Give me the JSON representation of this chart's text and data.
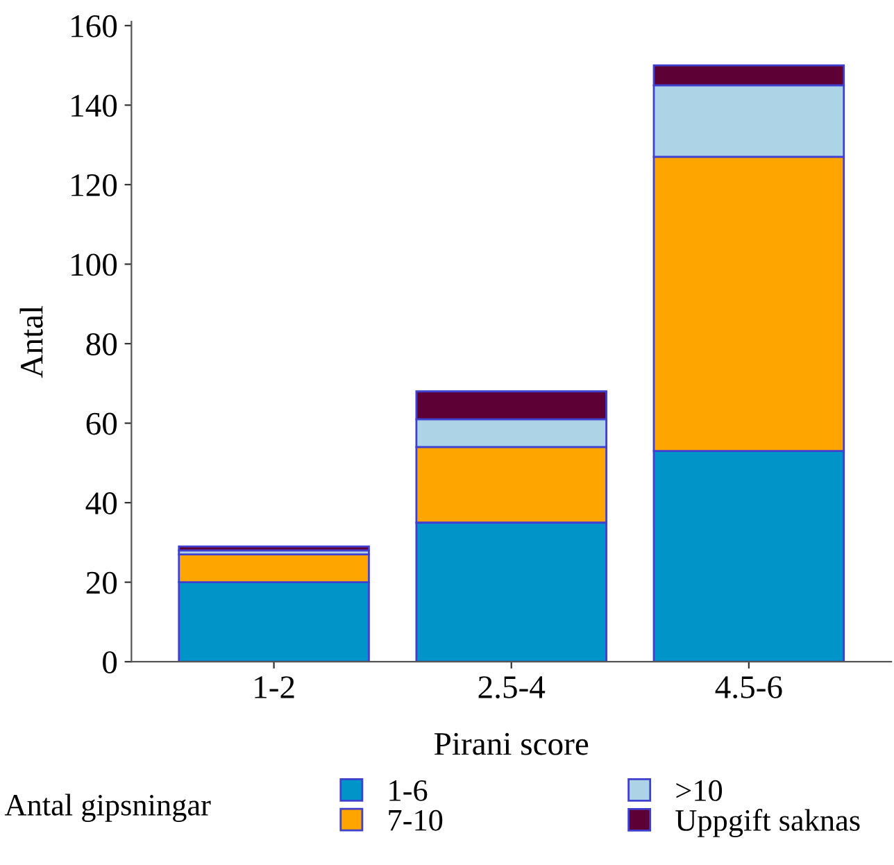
{
  "chart_data": {
    "type": "bar",
    "stacked": true,
    "xlabel": "Pirani score",
    "ylabel": "Antal",
    "legend_title": "Antal gipsningar",
    "categories": [
      "1-2",
      "2.5-4",
      "4.5-6"
    ],
    "series": [
      {
        "name": "1-6",
        "color": "#0094c8",
        "values": [
          20,
          35,
          53
        ]
      },
      {
        "name": "7-10",
        "color": "#ffa500",
        "values": [
          7,
          19,
          74
        ]
      },
      {
        "name": ">10",
        "color": "#acd3e6",
        "values": [
          1,
          7,
          18
        ]
      },
      {
        "name": "Uppgift saknas",
        "color": "#5c0036",
        "values": [
          1,
          7,
          5
        ]
      }
    ],
    "ylim": [
      0,
      161
    ],
    "yticks": [
      0,
      20,
      40,
      60,
      80,
      100,
      120,
      140,
      160
    ],
    "grid": false,
    "legend": "bottom"
  }
}
